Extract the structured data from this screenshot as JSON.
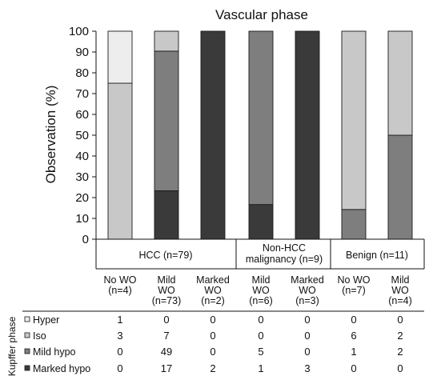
{
  "chart_data": {
    "type": "bar",
    "stacked": true,
    "title": "Vascular phase",
    "ylabel": "Observation (%)",
    "ylim": [
      0,
      100
    ],
    "yticks": [
      0,
      10,
      20,
      30,
      40,
      50,
      60,
      70,
      80,
      90,
      100
    ],
    "groups": [
      {
        "label": "HCC (n=79)",
        "lines": [
          "HCC (n=79)"
        ]
      },
      {
        "label": "Non-HCC malignancy (n=9)",
        "lines": [
          "Non-HCC",
          "malignancy (n=9)"
        ]
      },
      {
        "label": "Benign (n=11)",
        "lines": [
          "Benign (n=11)"
        ]
      }
    ],
    "categories": [
      {
        "lines": [
          "No WO",
          "(n=4)"
        ]
      },
      {
        "lines": [
          "Mild",
          "WO",
          "(n=73)"
        ]
      },
      {
        "lines": [
          "Marked",
          "WO",
          "(n=2)"
        ]
      },
      {
        "lines": [
          "Mild",
          "WO",
          "(n=6)"
        ]
      },
      {
        "lines": [
          "Marked",
          "WO",
          "(n=3)"
        ]
      },
      {
        "lines": [
          "No WO",
          "(n=7)"
        ]
      },
      {
        "lines": [
          "Mild",
          "WO",
          "(n=4)"
        ]
      }
    ],
    "table_title": "Kupffer phase",
    "series": [
      {
        "name": "Hyper",
        "color": "#ededed",
        "counts": [
          1,
          0,
          0,
          0,
          0,
          0,
          0
        ]
      },
      {
        "name": "Iso",
        "color": "#c8c8c8",
        "counts": [
          3,
          7,
          0,
          0,
          0,
          6,
          2
        ]
      },
      {
        "name": "Mild hypo",
        "color": "#7e7e7e",
        "counts": [
          0,
          49,
          0,
          5,
          0,
          1,
          2
        ]
      },
      {
        "name": "Marked hypo",
        "color": "#3a3a3a",
        "counts": [
          0,
          17,
          2,
          1,
          3,
          0,
          0
        ]
      }
    ]
  }
}
